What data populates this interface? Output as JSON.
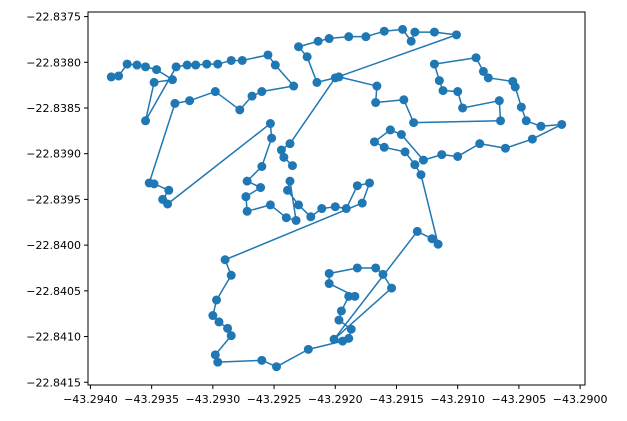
{
  "chart_data": {
    "type": "line",
    "color": "#1f77b4",
    "marker": "circle",
    "x": [
      -43.29383,
      -43.29377,
      -43.2937,
      -43.29362,
      -43.29355,
      -43.29346,
      -43.29333,
      -43.29348,
      -43.29355,
      -43.2933,
      -43.29321,
      -43.29314,
      -43.29305,
      -43.29296,
      -43.29285,
      -43.29276,
      -43.29255,
      -43.29249,
      -43.29234,
      -43.2926,
      -43.29268,
      -43.29278,
      -43.29298,
      -43.29319,
      -43.29331,
      -43.29352,
      -43.29348,
      -43.29336,
      -43.29341,
      -43.29337,
      -43.29253,
      -43.29252,
      -43.2926,
      -43.29272,
      -43.29261,
      -43.29273,
      -43.29272,
      -43.29253,
      -43.2924,
      -43.29232,
      -43.29237,
      -43.29239,
      -43.2923,
      -43.2922,
      -43.29211,
      -43.292,
      -43.29191,
      -43.29182,
      -43.29172,
      -43.29178,
      -43.2929,
      -43.29285,
      -43.29297,
      -43.293,
      -43.29295,
      -43.29288,
      -43.29285,
      -43.29298,
      -43.29296,
      -43.2926,
      -43.29248,
      -43.29222,
      -43.29194,
      -43.29189,
      -43.29187,
      -43.29197,
      -43.29195,
      -43.29189,
      -43.29184,
      -43.29205,
      -43.29205,
      -43.29182,
      -43.29167,
      -43.29161,
      -43.29154,
      -43.29201,
      -43.29133,
      -43.29121,
      -43.29116,
      -43.2913,
      -43.29135,
      -43.29143,
      -43.2916,
      -43.29168,
      -43.29155,
      -43.29146,
      -43.29128,
      -43.29113,
      -43.291,
      -43.29082,
      -43.29061,
      -43.29039,
      -43.29015,
      -43.29032,
      -43.29044,
      -43.29048,
      -43.29053,
      -43.29055,
      -43.29075,
      -43.29079,
      -43.29085,
      -43.29119,
      -43.29115,
      -43.29112,
      -43.291,
      -43.29096,
      -43.29066,
      -43.29065,
      -43.29136,
      -43.29144,
      -43.29167,
      -43.29166,
      -43.29197,
      -43.29215,
      -43.29223,
      -43.2923,
      -43.29214,
      -43.29205,
      -43.29189,
      -43.29175,
      -43.2916,
      -43.29145,
      -43.29138,
      -43.29135,
      -43.29119,
      -43.29101,
      -43.292,
      -43.29237,
      -43.29244,
      -43.29242,
      -43.29235
    ],
    "values": [
      -22.83816,
      -22.83815,
      -22.83802,
      -22.83803,
      -22.83805,
      -22.83808,
      -22.83819,
      -22.83822,
      -22.83864,
      -22.83805,
      -22.83803,
      -22.83803,
      -22.83802,
      -22.83802,
      -22.83798,
      -22.83798,
      -22.83792,
      -22.83803,
      -22.83826,
      -22.83832,
      -22.83837,
      -22.83852,
      -22.83832,
      -22.83842,
      -22.83845,
      -22.83932,
      -22.83933,
      -22.8394,
      -22.8395,
      -22.83955,
      -22.83867,
      -22.83883,
      -22.83914,
      -22.8393,
      -22.83937,
      -22.83947,
      -22.83963,
      -22.83956,
      -22.8397,
      -22.83973,
      -22.8393,
      -22.8394,
      -22.83956,
      -22.83969,
      -22.8396,
      -22.83958,
      -22.8396,
      -22.83935,
      -22.83932,
      -22.83954,
      -22.84016,
      -22.84033,
      -22.8406,
      -22.84077,
      -22.84084,
      -22.84091,
      -22.84099,
      -22.8412,
      -22.84128,
      -22.84126,
      -22.84133,
      -22.84114,
      -22.84105,
      -22.84102,
      -22.84092,
      -22.84082,
      -22.84072,
      -22.84056,
      -22.84056,
      -22.84042,
      -22.84031,
      -22.84025,
      -22.84025,
      -22.84032,
      -22.84047,
      -22.84103,
      -22.83985,
      -22.83993,
      -22.83999,
      -22.83923,
      -22.83912,
      -22.83898,
      -22.83893,
      -22.83887,
      -22.83874,
      -22.83879,
      -22.83907,
      -22.83901,
      -22.83903,
      -22.83889,
      -22.83894,
      -22.83884,
      -22.83868,
      -22.8387,
      -22.83864,
      -22.83849,
      -22.83827,
      -22.83821,
      -22.83817,
      -22.8381,
      -22.83795,
      -22.83802,
      -22.8382,
      -22.83831,
      -22.83832,
      -22.8385,
      -22.83842,
      -22.83864,
      -22.83866,
      -22.83841,
      -22.83844,
      -22.83826,
      -22.83816,
      -22.83822,
      -22.83794,
      -22.83783,
      -22.83777,
      -22.83774,
      -22.83772,
      -22.83772,
      -22.83766,
      -22.83764,
      -22.83777,
      -22.83767,
      -22.83767,
      -22.8377,
      -22.83817,
      -22.83889,
      -22.83896,
      -22.83904,
      -22.83913
    ],
    "xlim": [
      -43.29402,
      -43.28996
    ],
    "ylim": [
      -22.83745,
      -22.84153
    ],
    "xticks": [
      {
        "value": -43.294,
        "label": "−43.2940"
      },
      {
        "value": -43.2935,
        "label": "−43.2935"
      },
      {
        "value": -43.293,
        "label": "−43.2930"
      },
      {
        "value": -43.2925,
        "label": "−43.2925"
      },
      {
        "value": -43.292,
        "label": "−43.2920"
      },
      {
        "value": -43.2915,
        "label": "−43.2915"
      },
      {
        "value": -43.291,
        "label": "−43.2910"
      },
      {
        "value": -43.2905,
        "label": "−43.2905"
      },
      {
        "value": -43.29,
        "label": "−43.2900"
      }
    ],
    "yticks": [
      {
        "value": -22.8375,
        "label": "−22.8375"
      },
      {
        "value": -22.838,
        "label": "−22.8380"
      },
      {
        "value": -22.8385,
        "label": "−22.8385"
      },
      {
        "value": -22.839,
        "label": "−22.8390"
      },
      {
        "value": -22.8395,
        "label": "−22.8395"
      },
      {
        "value": -22.84,
        "label": "−22.8400"
      },
      {
        "value": -22.8405,
        "label": "−22.8405"
      },
      {
        "value": -22.841,
        "label": "−22.8410"
      },
      {
        "value": -22.8415,
        "label": "−22.8415"
      }
    ],
    "grid": false
  }
}
